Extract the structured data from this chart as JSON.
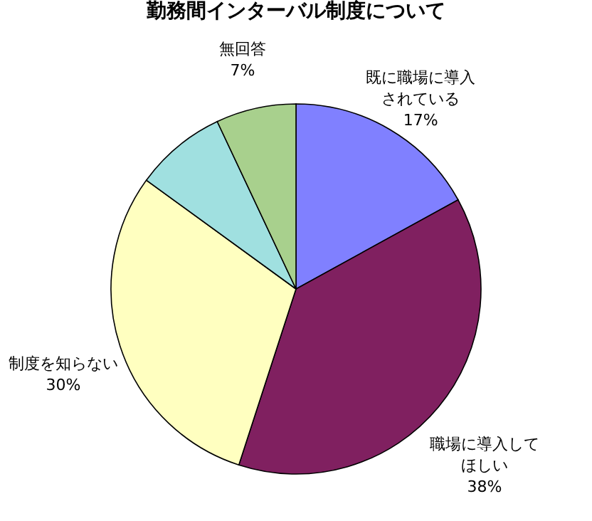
{
  "chart_data": {
    "type": "pie",
    "title": "勤務間インターバル制度について",
    "categories": [
      "既に職場に導入されている",
      "職場に導入してほしい",
      "制度を知らない",
      null,
      "無回答"
    ],
    "values": [
      17,
      38,
      30,
      8,
      7
    ],
    "value_labels": [
      "17%",
      "38%",
      "30%",
      null,
      "7%"
    ],
    "colors": [
      "#8080ff",
      "#802060",
      "#ffffc0",
      "#a0e0e0",
      "#a8d08d"
    ],
    "legend": false
  }
}
